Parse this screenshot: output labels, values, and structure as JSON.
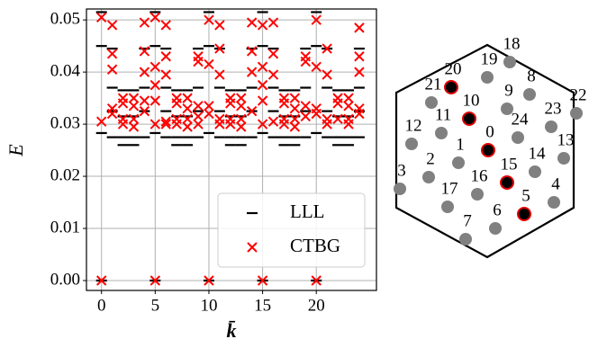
{
  "chart_data": {
    "type": "scatter",
    "xlabel": "k̄",
    "ylabel": "E",
    "xlim": [
      -1.4,
      25.6
    ],
    "xticks": [
      0,
      5,
      10,
      15,
      20
    ],
    "ylim": [
      -0.0019,
      0.0521
    ],
    "yticks": [
      {
        "value": 0,
        "label": "0.00"
      },
      {
        "value": 0.01,
        "label": "0.01"
      },
      {
        "value": 0.02,
        "label": "0.02"
      },
      {
        "value": 0.03,
        "label": "0.03"
      },
      {
        "value": 0.04,
        "label": "0.04"
      },
      {
        "value": 0.05,
        "label": "0.05"
      }
    ],
    "grid": true,
    "legend": "lower right",
    "series": [
      {
        "name": "LLL",
        "color": "#000000",
        "marker": "dash",
        "x": [
          0,
          0,
          0,
          0,
          1,
          1,
          1,
          1,
          2,
          2,
          2,
          2,
          3,
          3,
          3,
          3,
          4,
          4,
          4,
          4,
          5,
          5,
          5,
          5,
          6,
          6,
          6,
          6,
          7,
          7,
          7,
          7,
          8,
          8,
          8,
          8,
          9,
          9,
          9,
          9,
          10,
          10,
          10,
          10,
          11,
          11,
          11,
          11,
          12,
          12,
          12,
          12,
          13,
          13,
          13,
          13,
          14,
          14,
          14,
          14,
          15,
          15,
          15,
          15,
          16,
          16,
          16,
          16,
          17,
          17,
          17,
          17,
          18,
          18,
          18,
          18,
          19,
          19,
          19,
          19,
          20,
          20,
          20,
          20,
          21,
          21,
          21,
          21,
          22,
          22,
          22,
          22,
          23,
          23,
          23,
          23,
          24,
          24,
          24,
          24
        ],
        "values": [
          0,
          0.0283,
          0.045,
          0.0515,
          0.0275,
          0.0325,
          0.037,
          0.0445,
          0.026,
          0.0275,
          0.0315,
          0.0365,
          0.026,
          0.0275,
          0.0315,
          0.0365,
          0.0275,
          0.0325,
          0.037,
          0.0445,
          0,
          0.0283,
          0.045,
          0.0515,
          0.0275,
          0.0325,
          0.037,
          0.0445,
          0.026,
          0.0275,
          0.0315,
          0.0365,
          0.026,
          0.0275,
          0.0315,
          0.0365,
          0.0275,
          0.0325,
          0.037,
          0.0445,
          0,
          0.0283,
          0.045,
          0.0515,
          0.0275,
          0.0325,
          0.037,
          0.0445,
          0.026,
          0.0275,
          0.0315,
          0.0365,
          0.026,
          0.0275,
          0.0315,
          0.0365,
          0.0275,
          0.0325,
          0.037,
          0.0445,
          0,
          0.0283,
          0.045,
          0.0515,
          0.0275,
          0.0325,
          0.037,
          0.0445,
          0.026,
          0.0275,
          0.0315,
          0.0365,
          0.026,
          0.0275,
          0.0315,
          0.0365,
          0.0275,
          0.0325,
          0.037,
          0.0445,
          0,
          0.0283,
          0.045,
          0.0515,
          0.0275,
          0.0325,
          0.037,
          0.0445,
          0.026,
          0.0275,
          0.0315,
          0.0365,
          0.026,
          0.0275,
          0.0315,
          0.0365,
          0.0275,
          0.0325,
          0.037,
          0.0445
        ]
      },
      {
        "name": "CTBG",
        "color": "#ff0000",
        "marker": "x",
        "x": [
          0,
          0,
          0,
          1,
          1,
          1,
          1,
          1,
          2,
          2,
          2,
          2,
          3,
          3,
          3,
          3,
          4,
          4,
          4,
          4,
          4,
          5,
          5,
          5,
          5,
          5,
          5,
          6,
          6,
          6,
          6,
          6,
          7,
          7,
          7,
          7,
          8,
          8,
          8,
          8,
          9,
          9,
          9,
          9,
          9,
          10,
          10,
          10,
          10,
          10,
          11,
          11,
          11,
          11,
          11,
          12,
          12,
          12,
          12,
          13,
          13,
          13,
          13,
          14,
          14,
          14,
          14,
          15,
          15,
          15,
          15,
          15,
          15,
          16,
          16,
          16,
          16,
          17,
          17,
          17,
          17,
          18,
          18,
          18,
          18,
          19,
          19,
          19,
          19,
          20,
          20,
          20,
          20,
          20,
          21,
          21,
          21,
          21,
          22,
          22,
          22,
          23,
          23,
          23,
          23,
          24,
          24,
          24,
          24,
          24
        ],
        "values": [
          0,
          0.0305,
          0.0505,
          0.049,
          0.0435,
          0.0405,
          0.033,
          0.032,
          0.035,
          0.034,
          0.031,
          0.03,
          0.035,
          0.0335,
          0.031,
          0.0295,
          0.0495,
          0.044,
          0.04,
          0.0345,
          0.0325,
          0,
          0.0505,
          0.041,
          0.0375,
          0.0345,
          0.03,
          0.049,
          0.043,
          0.0395,
          0.0305,
          0.03,
          0.035,
          0.034,
          0.031,
          0.03,
          0.035,
          0.033,
          0.031,
          0.0295,
          0.043,
          0.042,
          0.0335,
          0.0315,
          0.03,
          0,
          0.05,
          0.0415,
          0.0335,
          0.032,
          0.049,
          0.0445,
          0.0395,
          0.031,
          0.03,
          0.035,
          0.034,
          0.031,
          0.03,
          0.035,
          0.0335,
          0.031,
          0.0295,
          0.0495,
          0.044,
          0.04,
          0.0325,
          0,
          0.049,
          0.041,
          0.0375,
          0.0345,
          0.03,
          0.0495,
          0.0435,
          0.0395,
          0.0305,
          0.035,
          0.034,
          0.031,
          0.03,
          0.035,
          0.033,
          0.031,
          0.0295,
          0.043,
          0.042,
          0.0335,
          0.0315,
          0,
          0.05,
          0.041,
          0.033,
          0.032,
          0.0445,
          0.0395,
          0.031,
          0.03,
          0.035,
          0.034,
          0.031,
          0.035,
          0.0335,
          0.031,
          0.03,
          0.0485,
          0.043,
          0.04,
          0.033,
          0.032
        ]
      }
    ]
  },
  "lattice": {
    "nodes": [
      {
        "label": "0",
        "color": "#000000",
        "edge_color": "#e00000"
      },
      {
        "label": "1",
        "color": "#808080"
      },
      {
        "label": "2",
        "color": "#808080"
      },
      {
        "label": "3",
        "color": "#808080"
      },
      {
        "label": "4",
        "color": "#808080"
      },
      {
        "label": "5",
        "color": "#000000",
        "edge_color": "#e00000"
      },
      {
        "label": "6",
        "color": "#808080"
      },
      {
        "label": "7",
        "color": "#808080"
      },
      {
        "label": "8",
        "color": "#808080"
      },
      {
        "label": "9",
        "color": "#808080"
      },
      {
        "label": "10",
        "color": "#000000",
        "edge_color": "#e00000"
      },
      {
        "label": "11",
        "color": "#808080"
      },
      {
        "label": "12",
        "color": "#808080"
      },
      {
        "label": "13",
        "color": "#808080"
      },
      {
        "label": "14",
        "color": "#808080"
      },
      {
        "label": "15",
        "color": "#000000",
        "edge_color": "#e00000"
      },
      {
        "label": "16",
        "color": "#808080"
      },
      {
        "label": "17",
        "color": "#808080"
      },
      {
        "label": "18",
        "color": "#808080"
      },
      {
        "label": "19",
        "color": "#808080"
      },
      {
        "label": "20",
        "color": "#000000",
        "edge_color": "#e00000"
      },
      {
        "label": "21",
        "color": "#808080"
      },
      {
        "label": "22",
        "color": "#808080"
      },
      {
        "label": "23",
        "color": "#808080"
      },
      {
        "label": "24",
        "color": "#808080"
      }
    ]
  }
}
